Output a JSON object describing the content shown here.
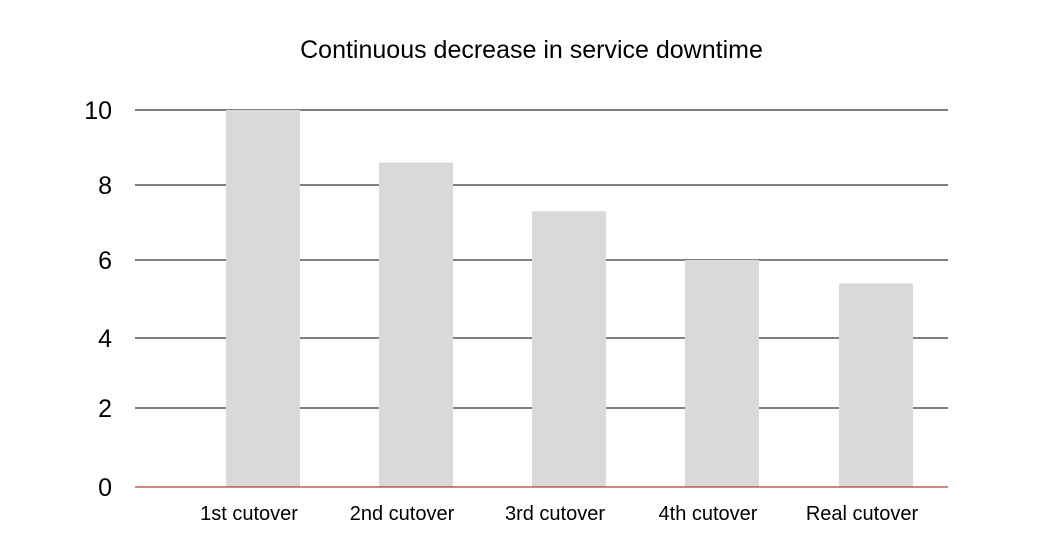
{
  "chart_data": {
    "type": "bar",
    "title": "Continuous decrease in service downtime",
    "xlabel": "",
    "ylabel": "",
    "categories": [
      "1st cutover",
      "2nd cutover",
      "3rd cutover",
      "4th cutover",
      "Real cutover"
    ],
    "values": [
      10,
      8.6,
      7.3,
      6.0,
      5.4
    ],
    "y_ticks": [
      "0",
      "2",
      "4",
      "6",
      "8",
      "10"
    ],
    "ylim": [
      0,
      10
    ],
    "grid": true,
    "legend": "none",
    "colors": {
      "bar": "#d9d9d9",
      "grid": "#000000",
      "baseline": "#c00000",
      "text": "#000000"
    }
  }
}
